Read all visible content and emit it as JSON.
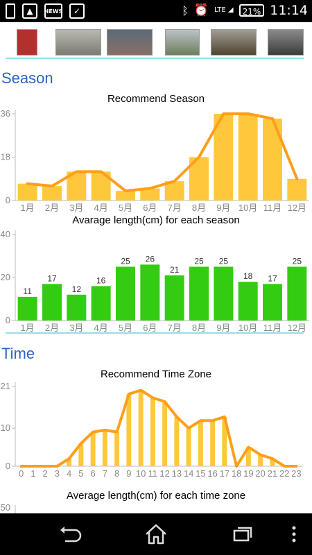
{
  "status_bar": {
    "left_icons": [
      "phone-icon",
      "image-icon",
      "news-icon",
      "briefcase-icon"
    ],
    "news_label": "NEWS",
    "right_icons": [
      "bluetooth-icon",
      "alarm-icon",
      "lte-signal-icon",
      "battery-icon"
    ],
    "network": "LTE",
    "battery": "21%",
    "time": "11:14"
  },
  "thumbnails": [
    {
      "name": "fish-thumb-1",
      "color": "#b3312c"
    },
    {
      "name": "fish-thumb-2",
      "color": "#8e8f88"
    },
    {
      "name": "fish-thumb-3",
      "color": "#6d6a6a"
    },
    {
      "name": "fish-thumb-4",
      "color": "#7a8a66"
    },
    {
      "name": "fish-thumb-5",
      "color": "#6b5d3f"
    },
    {
      "name": "fish-thumb-6",
      "color": "#4f4f4f"
    }
  ],
  "sections": {
    "season": "Season",
    "time": "Time"
  },
  "charts": {
    "recommend_season": {
      "title": "Recommend Season",
      "categories": [
        "1月",
        "2月",
        "3月",
        "4月",
        "5月",
        "6月",
        "7月",
        "8月",
        "9月",
        "10月",
        "11月",
        "12月"
      ],
      "values": [
        7,
        6,
        12,
        12,
        4,
        5,
        8,
        18,
        36,
        36,
        34,
        9
      ],
      "yticks": [
        0,
        18,
        36
      ],
      "ymax": 36,
      "bar_color": "#ffc83c",
      "line_color": "#ff9e1a"
    },
    "avg_length_season": {
      "title": "Avarage length(cm) for each season",
      "categories": [
        "1月",
        "2月",
        "3月",
        "4月",
        "5月",
        "6月",
        "7月",
        "8月",
        "9月",
        "10月",
        "11月",
        "12月"
      ],
      "values": [
        11,
        17,
        12,
        16,
        25,
        26,
        21,
        25,
        25,
        18,
        17,
        25
      ],
      "yticks": [
        0,
        20,
        40
      ],
      "ymax": 40,
      "bar_color": "#33cc11"
    },
    "recommend_time": {
      "title": "Recommend Time Zone",
      "categories": [
        "0",
        "1",
        "2",
        "3",
        "4",
        "5",
        "6",
        "7",
        "8",
        "9",
        "10",
        "11",
        "12",
        "13",
        "14",
        "15",
        "16",
        "17",
        "18",
        "19",
        "20",
        "21",
        "22",
        "23"
      ],
      "values": [
        0,
        0,
        0,
        0,
        2,
        6,
        9,
        9.5,
        9,
        19,
        20,
        18,
        17,
        13,
        10,
        12,
        12,
        13,
        0,
        5,
        3,
        2,
        0,
        0
      ],
      "yticks": [
        0,
        10,
        21
      ],
      "ymax": 21,
      "bar_color": "#ffc83c",
      "line_color": "#ff9e1a"
    },
    "avg_length_time": {
      "title": "Average length(cm) for each time zone",
      "yticks": [
        50
      ]
    }
  },
  "nav_bar": {
    "buttons": [
      "back-icon",
      "home-icon",
      "recent-apps-icon",
      "overflow-menu-icon"
    ]
  }
}
